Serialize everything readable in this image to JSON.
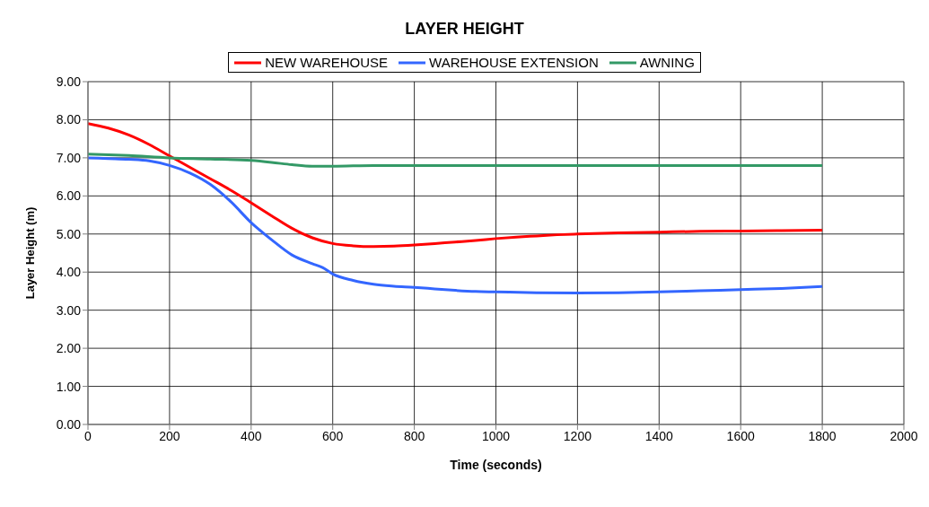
{
  "chart_data": {
    "type": "line",
    "title": "LAYER HEIGHT",
    "xlabel": "Time (seconds)",
    "ylabel": "Layer Height (m)",
    "xlim": [
      0,
      2000
    ],
    "xticks": [
      0,
      200,
      400,
      600,
      800,
      1000,
      1200,
      1400,
      1600,
      1800,
      2000
    ],
    "ylim": [
      0,
      9
    ],
    "yticks": [
      {
        "value": 0,
        "label": "0.00"
      },
      {
        "value": 1,
        "label": "1.00"
      },
      {
        "value": 2,
        "label": "2.00"
      },
      {
        "value": 3,
        "label": "3.00"
      },
      {
        "value": 4,
        "label": "4.00"
      },
      {
        "value": 5,
        "label": "5.00"
      },
      {
        "value": 6,
        "label": "6.00"
      },
      {
        "value": 7,
        "label": "7.00"
      },
      {
        "value": 8,
        "label": "8.00"
      },
      {
        "value": 9,
        "label": "9.00"
      }
    ],
    "grid": true,
    "legend": "top",
    "marker": "none",
    "line_style": "solid",
    "series": [
      {
        "name": "NEW WAREHOUSE",
        "color": "#ff0000",
        "x": [
          0,
          50,
          100,
          150,
          200,
          250,
          300,
          350,
          400,
          450,
          500,
          550,
          600,
          650,
          700,
          750,
          800,
          850,
          900,
          950,
          1000,
          1050,
          1100,
          1150,
          1200,
          1300,
          1400,
          1500,
          1600,
          1700,
          1800
        ],
        "values": [
          7.9,
          7.78,
          7.6,
          7.35,
          7.05,
          6.75,
          6.45,
          6.15,
          5.82,
          5.48,
          5.15,
          4.9,
          4.75,
          4.69,
          4.67,
          4.68,
          4.71,
          4.75,
          4.79,
          4.83,
          4.88,
          4.92,
          4.95,
          4.98,
          5.0,
          5.03,
          5.05,
          5.07,
          5.08,
          5.09,
          5.1
        ]
      },
      {
        "name": "WAREHOUSE EXTENSION",
        "color": "#3366ff",
        "x": [
          0,
          50,
          100,
          150,
          200,
          250,
          300,
          350,
          400,
          450,
          500,
          550,
          575,
          600,
          650,
          700,
          750,
          800,
          850,
          900,
          950,
          1000,
          1100,
          1200,
          1300,
          1400,
          1500,
          1600,
          1700,
          1800
        ],
        "values": [
          7.0,
          6.98,
          6.96,
          6.92,
          6.8,
          6.6,
          6.3,
          5.85,
          5.3,
          4.85,
          4.45,
          4.22,
          4.12,
          3.95,
          3.78,
          3.68,
          3.63,
          3.6,
          3.56,
          3.52,
          3.49,
          3.48,
          3.46,
          3.45,
          3.46,
          3.48,
          3.51,
          3.54,
          3.57,
          3.62
        ]
      },
      {
        "name": "AWNING",
        "color": "#339966",
        "x": [
          0,
          100,
          200,
          300,
          400,
          450,
          500,
          550,
          600,
          700,
          800,
          1000,
          1200,
          1400,
          1600,
          1800
        ],
        "values": [
          7.1,
          7.06,
          7.0,
          6.97,
          6.93,
          6.88,
          6.82,
          6.78,
          6.78,
          6.8,
          6.8,
          6.8,
          6.8,
          6.8,
          6.8,
          6.8
        ]
      }
    ]
  }
}
